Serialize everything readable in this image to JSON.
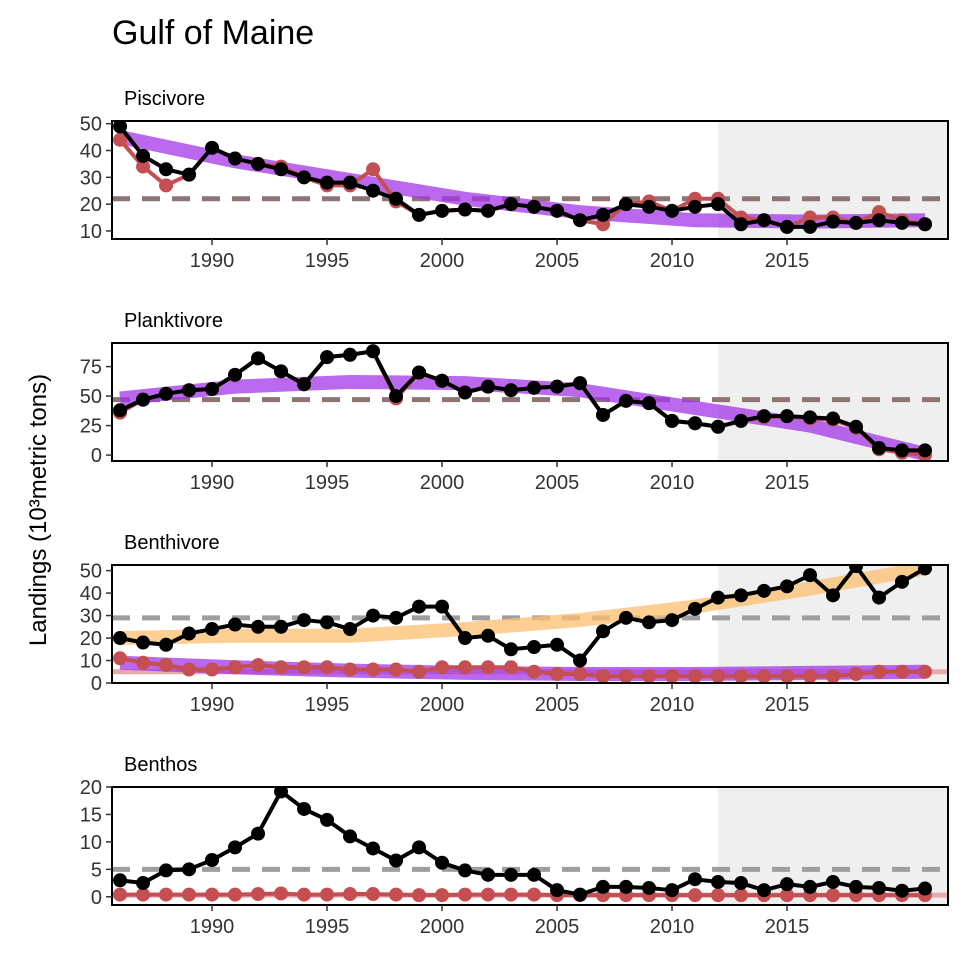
{
  "title": "Gulf of Maine",
  "y_label": "Landings (10³metric tons)",
  "chart_data": [
    {
      "type": "line",
      "title": "Piscivore",
      "x": [
        1986,
        1987,
        1988,
        1989,
        1990,
        1991,
        1992,
        1993,
        1994,
        1995,
        1996,
        1997,
        1998,
        1999,
        2000,
        2001,
        2002,
        2003,
        2004,
        2005,
        2006,
        2007,
        2008,
        2009,
        2010,
        2011,
        2012,
        2013,
        2014,
        2015,
        2016,
        2017,
        2018,
        2019,
        2020,
        2021
      ],
      "xlim": [
        1985.65,
        2022
      ],
      "xticks": [
        1990,
        1995,
        2000,
        2005,
        2010,
        2015
      ],
      "ylim": [
        7,
        51
      ],
      "yticks": [
        10,
        20,
        30,
        40,
        50
      ],
      "shade": [
        2012,
        2022
      ],
      "hlines": [
        {
          "value": 22,
          "color": "#8f7474",
          "dashed": true
        }
      ],
      "trends": [
        {
          "color": "#a335e8",
          "x": [
            1986,
            1991,
            1996,
            2001,
            2006,
            2011,
            2016,
            2021
          ],
          "values": [
            45,
            36,
            29,
            22,
            17,
            14,
            13.5,
            14
          ]
        }
      ],
      "series": [
        {
          "color": "#c44e52",
          "values": [
            44,
            34,
            27,
            31,
            41,
            37,
            35,
            34,
            30,
            27,
            27,
            33,
            21,
            16,
            17.5,
            18,
            17.5,
            20,
            19,
            17.5,
            14,
            12.5,
            20,
            21,
            17.5,
            22,
            22,
            15,
            14,
            11.5,
            15,
            15,
            13,
            17,
            14,
            12.5
          ]
        },
        {
          "color": "#000000",
          "values": [
            49,
            38,
            33,
            31,
            41,
            37,
            35,
            33,
            30,
            28,
            28,
            25,
            22,
            16,
            17.5,
            18,
            17.5,
            20,
            19,
            17.5,
            14,
            16,
            20,
            19,
            17.5,
            19,
            20,
            12.5,
            14,
            11.5,
            11.5,
            13.5,
            13,
            14,
            13,
            12.5
          ]
        }
      ]
    },
    {
      "type": "line",
      "title": "Planktivore",
      "x": [
        1986,
        1987,
        1988,
        1989,
        1990,
        1991,
        1992,
        1993,
        1994,
        1995,
        1996,
        1997,
        1998,
        1999,
        2000,
        2001,
        2002,
        2003,
        2004,
        2005,
        2006,
        2007,
        2008,
        2009,
        2010,
        2011,
        2012,
        2013,
        2014,
        2015,
        2016,
        2017,
        2018,
        2019,
        2020,
        2021
      ],
      "xlim": [
        1985.65,
        2022
      ],
      "xticks": [
        1990,
        1995,
        2000,
        2005,
        2010,
        2015
      ],
      "ylim": [
        -5,
        95
      ],
      "yticks": [
        0,
        25,
        50,
        75
      ],
      "shade": [
        2012,
        2022
      ],
      "hlines": [
        {
          "value": 47,
          "color": "#8f7474",
          "dashed": true
        }
      ],
      "trends": [
        {
          "color": "#a335e8",
          "x": [
            1986,
            1991,
            1996,
            2001,
            2006,
            2011,
            2016,
            2021
          ],
          "values": [
            48,
            58,
            62,
            61,
            55,
            40,
            25,
            1
          ]
        }
      ],
      "series": [
        {
          "color": "#c44e52",
          "values": [
            36,
            47,
            52,
            55,
            56,
            68,
            82,
            71,
            60,
            83,
            85,
            88,
            48,
            70,
            63,
            53,
            58,
            55,
            57,
            58,
            61,
            34,
            46,
            44,
            29,
            27,
            24,
            29,
            32,
            33,
            31,
            30,
            23,
            5,
            2,
            0
          ]
        },
        {
          "color": "#000000",
          "values": [
            38,
            47,
            52,
            55,
            56,
            68,
            82,
            71,
            60,
            83,
            85,
            88,
            50,
            70,
            63,
            53,
            58,
            55,
            57,
            58,
            61,
            34,
            46,
            44,
            29,
            27,
            24,
            29,
            33,
            33,
            32,
            31,
            24,
            6,
            4,
            4
          ]
        }
      ]
    },
    {
      "type": "line",
      "title": "Benthivore",
      "x": [
        1986,
        1987,
        1988,
        1989,
        1990,
        1991,
        1992,
        1993,
        1994,
        1995,
        1996,
        1997,
        1998,
        1999,
        2000,
        2001,
        2002,
        2003,
        2004,
        2005,
        2006,
        2007,
        2008,
        2009,
        2010,
        2011,
        2012,
        2013,
        2014,
        2015,
        2016,
        2017,
        2018,
        2019,
        2020,
        2021
      ],
      "xlim": [
        1985.65,
        2022
      ],
      "xticks": [
        1990,
        1995,
        2000,
        2005,
        2010,
        2015
      ],
      "ylim": [
        0,
        52.5
      ],
      "yticks": [
        0,
        10,
        20,
        30,
        40,
        50
      ],
      "shade": [
        2012,
        2022
      ],
      "hlines": [
        {
          "value": 29,
          "color": "#9e9e9e",
          "dashed": true
        },
        {
          "value": 5,
          "color": "#e8a9a9",
          "dashed": false
        }
      ],
      "trends": [
        {
          "color": "#fdbf6f",
          "x": [
            1986,
            1991,
            1996,
            2001,
            2006,
            2011,
            2016,
            2021
          ],
          "values": [
            20,
            21,
            21,
            24,
            28,
            34,
            42,
            51
          ]
        },
        {
          "color": "#a335e8",
          "x": [
            1986,
            1991,
            1996,
            2001,
            2006,
            2011,
            2016,
            2021
          ],
          "values": [
            9,
            7,
            5.5,
            4.5,
            4,
            4,
            4.5,
            5
          ]
        }
      ],
      "series": [
        {
          "color": "#c44e52",
          "values": [
            11,
            9,
            8,
            6,
            6,
            7,
            8,
            7,
            7,
            7,
            6,
            6,
            6,
            5,
            7,
            7,
            7,
            7,
            5,
            4,
            4,
            3,
            3,
            3,
            3,
            3,
            3,
            3,
            3,
            3,
            3,
            3,
            4,
            5,
            5,
            5
          ]
        },
        {
          "color": "#000000",
          "values": [
            20,
            18,
            17,
            22,
            24,
            26,
            25,
            25,
            28,
            27,
            24,
            30,
            29,
            34,
            34,
            20,
            21,
            15,
            16,
            17,
            10,
            23,
            29,
            27,
            28,
            33,
            38,
            39,
            41,
            43,
            48,
            39,
            52,
            38,
            45,
            51
          ]
        }
      ]
    },
    {
      "type": "line",
      "title": "Benthos",
      "x": [
        1986,
        1987,
        1988,
        1989,
        1990,
        1991,
        1992,
        1993,
        1994,
        1995,
        1996,
        1997,
        1998,
        1999,
        2000,
        2001,
        2002,
        2003,
        2004,
        2005,
        2006,
        2007,
        2008,
        2009,
        2010,
        2011,
        2012,
        2013,
        2014,
        2015,
        2016,
        2017,
        2018,
        2019,
        2020,
        2021
      ],
      "xlim": [
        1985.65,
        2022
      ],
      "xticks": [
        1990,
        1995,
        2000,
        2005,
        2010,
        2015
      ],
      "ylim": [
        -1.5,
        20
      ],
      "yticks": [
        0,
        5,
        10,
        15,
        20
      ],
      "shade": [
        2012,
        2022
      ],
      "hlines": [
        {
          "value": 5,
          "color": "#9e9e9e",
          "dashed": true
        },
        {
          "value": 0.3,
          "color": "#e8a9a9",
          "dashed": false
        }
      ],
      "trends": [],
      "series": [
        {
          "color": "#c44e52",
          "values": [
            0.4,
            0.4,
            0.4,
            0.4,
            0.4,
            0.4,
            0.5,
            0.6,
            0.4,
            0.4,
            0.5,
            0.5,
            0.4,
            0.3,
            0.3,
            0.4,
            0.4,
            0.4,
            0.4,
            0.3,
            0.3,
            0.3,
            0.3,
            0.3,
            0.3,
            0.3,
            0.3,
            0.3,
            0.3,
            0.3,
            0.3,
            0.3,
            0.3,
            0.3,
            0.3,
            0.3
          ]
        },
        {
          "color": "#000000",
          "values": [
            3,
            2.5,
            4.8,
            5,
            6.7,
            9,
            11.5,
            19.2,
            16,
            14,
            11,
            8.8,
            6.6,
            9,
            6.2,
            4.8,
            4,
            4,
            4,
            1.2,
            0.4,
            1.8,
            1.8,
            1.6,
            1.2,
            3.2,
            2.7,
            2.5,
            1.2,
            2.3,
            1.8,
            2.7,
            1.8,
            1.6,
            1.1,
            1.5
          ]
        }
      ]
    }
  ]
}
